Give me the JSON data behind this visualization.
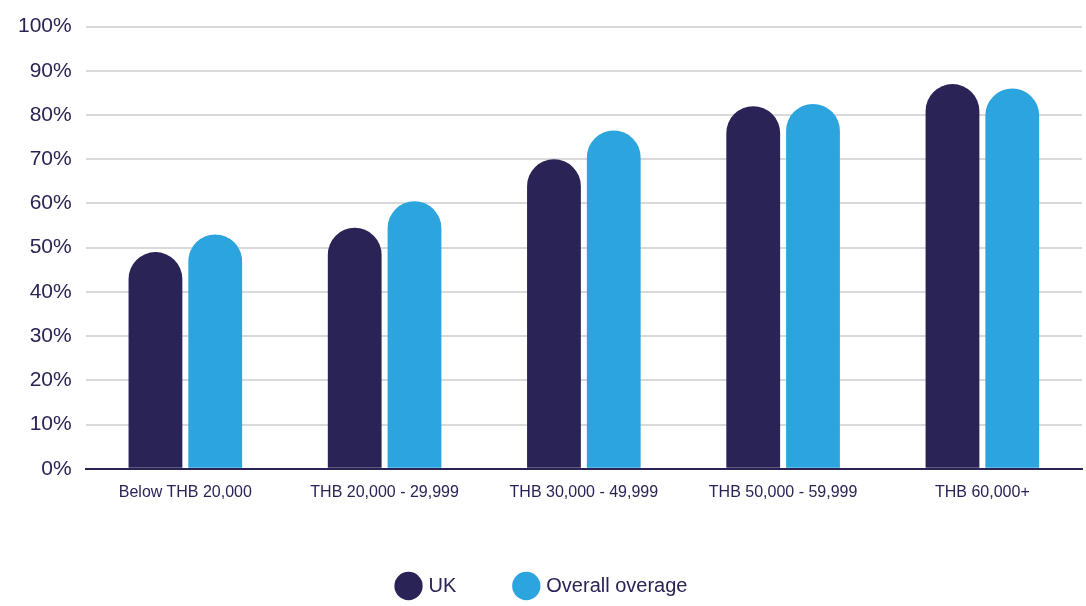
{
  "chart_data": {
    "type": "bar",
    "categories": [
      "Below THB 20,000",
      "THB 20,000 - 29,999",
      "THB 30,000 - 49,999",
      "THB 50,000 - 59,999",
      "THB 60,000+"
    ],
    "series": [
      {
        "name": "UK",
        "color": "#2a2356",
        "values": [
          49,
          54.5,
          70,
          82,
          87
        ]
      },
      {
        "name": "Overall overage",
        "color": "#2ca4de",
        "values": [
          53,
          60.5,
          76.5,
          82.5,
          86
        ]
      }
    ],
    "ylim": [
      0,
      100
    ],
    "yticks": [
      {
        "value": 0,
        "label": "0%"
      },
      {
        "value": 10,
        "label": "10%"
      },
      {
        "value": 20,
        "label": "20%"
      },
      {
        "value": 30,
        "label": "30%"
      },
      {
        "value": 40,
        "label": "40%"
      },
      {
        "value": 50,
        "label": "50%"
      },
      {
        "value": 60,
        "label": "60%"
      },
      {
        "value": 70,
        "label": "70%"
      },
      {
        "value": 80,
        "label": "80%"
      },
      {
        "value": 90,
        "label": "90%"
      },
      {
        "value": 100,
        "label": "100%"
      }
    ],
    "grid": "y",
    "legend": "bottom"
  }
}
